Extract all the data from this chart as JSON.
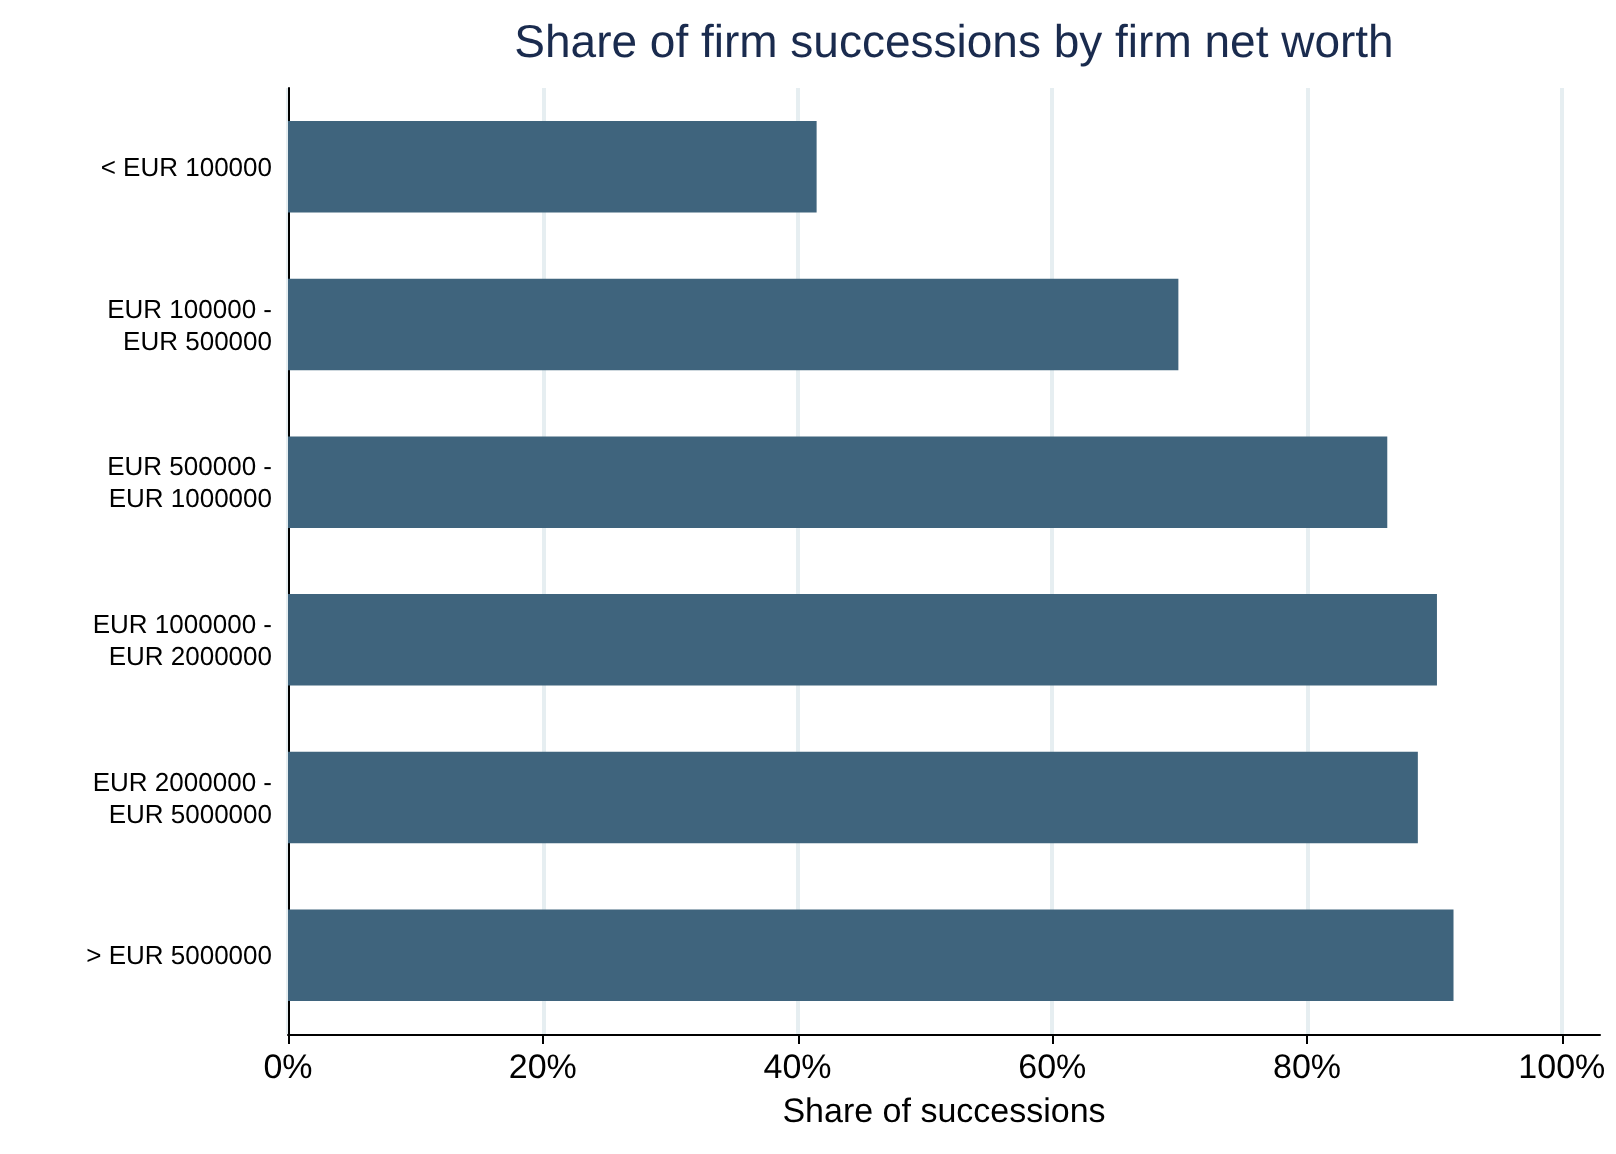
{
  "chart_data": {
    "type": "bar",
    "orientation": "horizontal",
    "title": "Share of firm successions by firm net worth",
    "xlabel": "Share of successions",
    "categories": [
      "< EUR 100000",
      "EUR 100000 -\nEUR 500000",
      "EUR 500000 -\nEUR 1000000",
      "EUR 1000000 -\nEUR 2000000",
      "EUR 2000000 -\nEUR 5000000",
      "> EUR 5000000"
    ],
    "values": [
      41.5,
      69.9,
      86.3,
      90.2,
      88.7,
      91.5
    ],
    "color": "#3f647d",
    "xlim": [
      0,
      103
    ],
    "xticks": [
      {
        "value": 0,
        "label": "0%"
      },
      {
        "value": 20,
        "label": "20%"
      },
      {
        "value": 40,
        "label": "40%"
      },
      {
        "value": 60,
        "label": "60%"
      },
      {
        "value": 80,
        "label": "80%"
      },
      {
        "value": 100,
        "label": "100%"
      }
    ],
    "grid": "x"
  }
}
